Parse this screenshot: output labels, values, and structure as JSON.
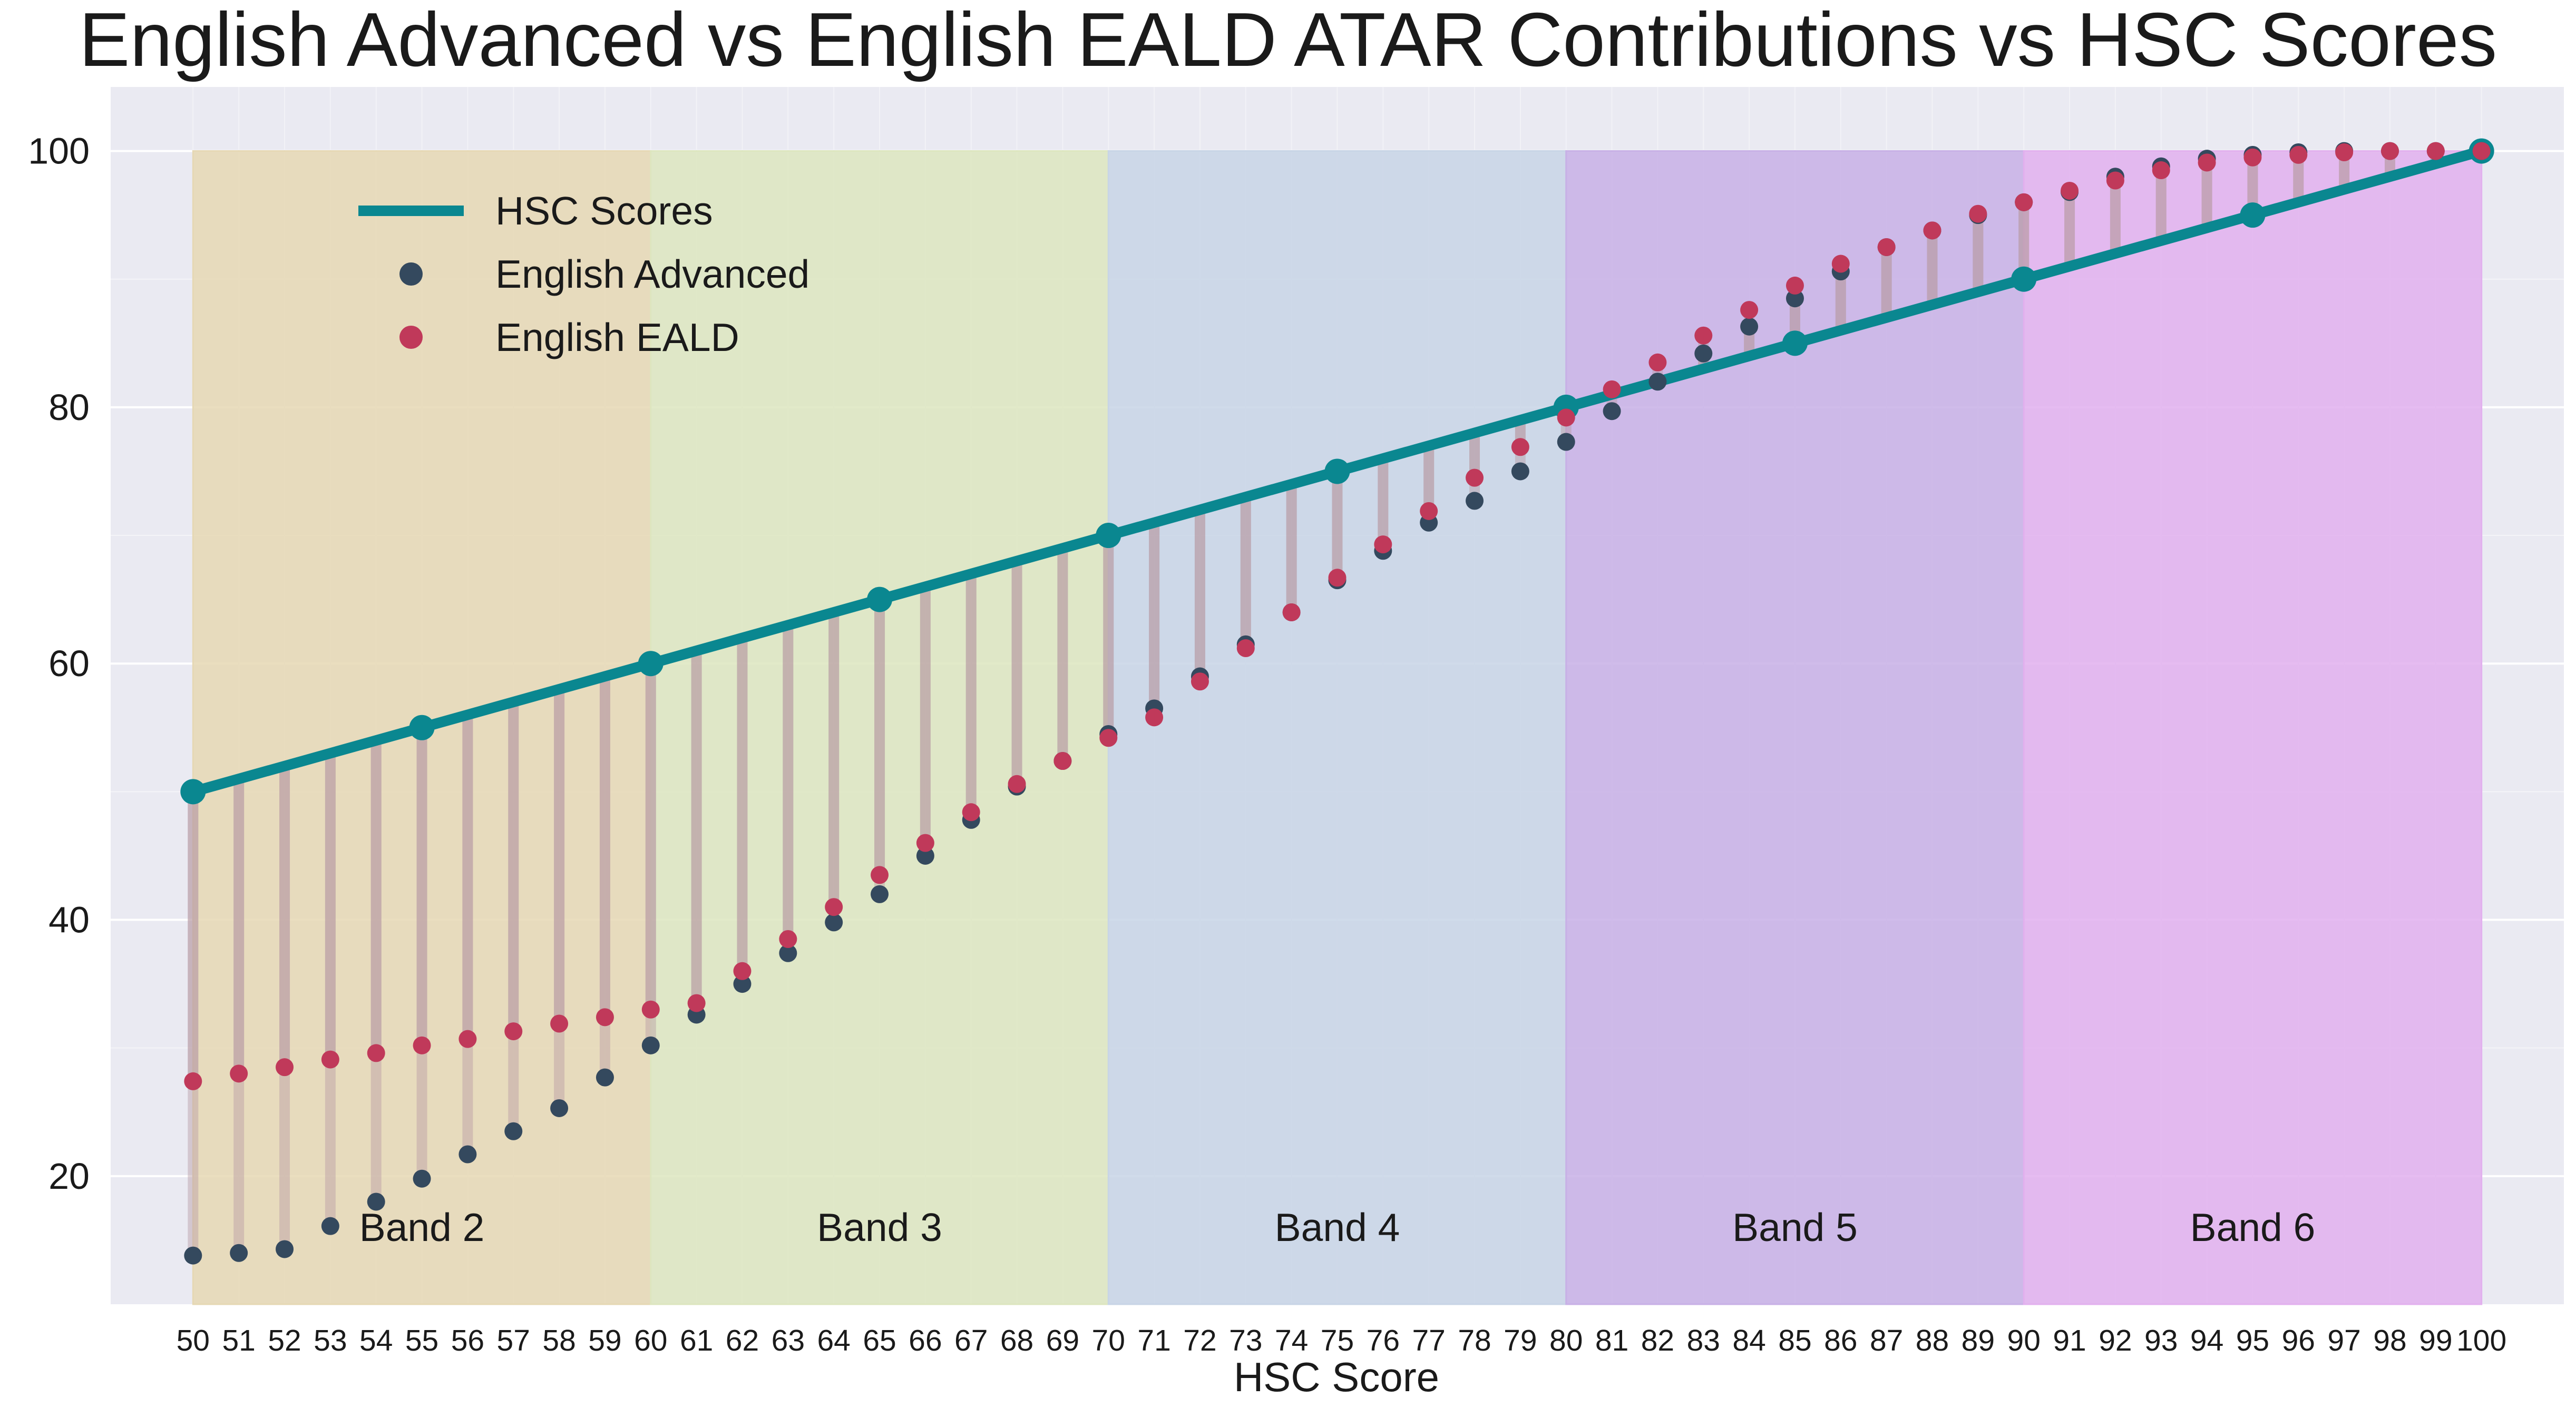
{
  "chart_data": {
    "type": "line",
    "title": "English Advanced vs English EALD ATAR Contributions vs HSC Scores",
    "xlabel": "HSC Score",
    "ylabel": "",
    "xlim": [
      48.2,
      101.8
    ],
    "ylim": [
      10,
      105
    ],
    "yticks": [
      20,
      40,
      60,
      80,
      100
    ],
    "x": [
      50,
      51,
      52,
      53,
      54,
      55,
      56,
      57,
      58,
      59,
      60,
      61,
      62,
      63,
      64,
      65,
      66,
      67,
      68,
      69,
      70,
      71,
      72,
      73,
      74,
      75,
      76,
      77,
      78,
      79,
      80,
      81,
      82,
      83,
      84,
      85,
      86,
      87,
      88,
      89,
      90,
      91,
      92,
      93,
      94,
      95,
      96,
      97,
      98,
      99,
      100
    ],
    "xtick_labels": [
      "50",
      "51",
      "52",
      "53",
      "54",
      "55",
      "56",
      "57",
      "58",
      "59",
      "60",
      "61",
      "62",
      "63",
      "64",
      "65",
      "66",
      "67",
      "68",
      "69",
      "70",
      "71",
      "72",
      "73",
      "74",
      "75",
      "76",
      "77",
      "78",
      "79",
      "80",
      "81",
      "82",
      "83",
      "84",
      "85",
      "86",
      "87",
      "88",
      "89",
      "90",
      "91",
      "92",
      "93",
      "94",
      "95",
      "96",
      "97",
      "98",
      "99",
      "100"
    ],
    "series": [
      {
        "name": "HSC Scores",
        "kind": "line",
        "color": "#0a8790",
        "x": [
          50,
          55,
          60,
          65,
          70,
          75,
          80,
          85,
          90,
          95,
          100
        ],
        "values": [
          50,
          55,
          60,
          65,
          70,
          75,
          80,
          85,
          90,
          95,
          100
        ]
      },
      {
        "name": "English Advanced",
        "kind": "scatter",
        "color": "#34495e",
        "values": [
          13.8,
          14.0,
          14.3,
          16.1,
          18.0,
          19.8,
          21.7,
          23.5,
          25.3,
          27.7,
          30.2,
          32.6,
          35.0,
          37.4,
          39.8,
          42.0,
          45.0,
          47.8,
          50.4,
          52.4,
          54.5,
          56.5,
          59.0,
          61.5,
          64.0,
          66.5,
          68.8,
          71.0,
          72.7,
          75.0,
          77.3,
          79.7,
          82.0,
          84.2,
          86.3,
          88.5,
          90.6,
          92.5,
          93.8,
          95.0,
          96.0,
          96.8,
          98.0,
          98.8,
          99.4,
          99.7,
          99.9,
          100,
          100,
          100,
          100
        ]
      },
      {
        "name": "English EALD",
        "kind": "scatter",
        "color": "#c0395a",
        "values": [
          27.4,
          28.0,
          28.5,
          29.1,
          29.6,
          30.2,
          30.7,
          31.3,
          31.9,
          32.4,
          33.0,
          33.5,
          36.0,
          38.5,
          41.0,
          43.5,
          46.0,
          48.4,
          50.6,
          52.4,
          54.2,
          55.8,
          58.6,
          61.2,
          64.0,
          66.7,
          69.3,
          71.9,
          74.5,
          76.9,
          79.2,
          81.4,
          83.5,
          85.6,
          87.6,
          89.5,
          91.2,
          92.5,
          93.8,
          95.1,
          96.0,
          96.9,
          97.7,
          98.5,
          99.1,
          99.5,
          99.7,
          99.9,
          100,
          100,
          100
        ]
      }
    ],
    "bands": [
      {
        "label": "Band 2",
        "from": 50,
        "to": 60,
        "color": "#e6d8b4"
      },
      {
        "label": "Band 3",
        "from": 60,
        "to": 70,
        "color": "#dde6bf"
      },
      {
        "label": "Band 4",
        "from": 70,
        "to": 80,
        "color": "#c8d5e6"
      },
      {
        "label": "Band 5",
        "from": 80,
        "to": 90,
        "color": "#c8b0e6"
      },
      {
        "label": "Band 6",
        "from": 90,
        "to": 100,
        "color": "#e2b0ee"
      }
    ],
    "band_top": 100,
    "band_label_y": 16,
    "grid": true,
    "legend_position": "top-left",
    "background": "#eaeaf2",
    "connector_color": "#b89ca4"
  }
}
